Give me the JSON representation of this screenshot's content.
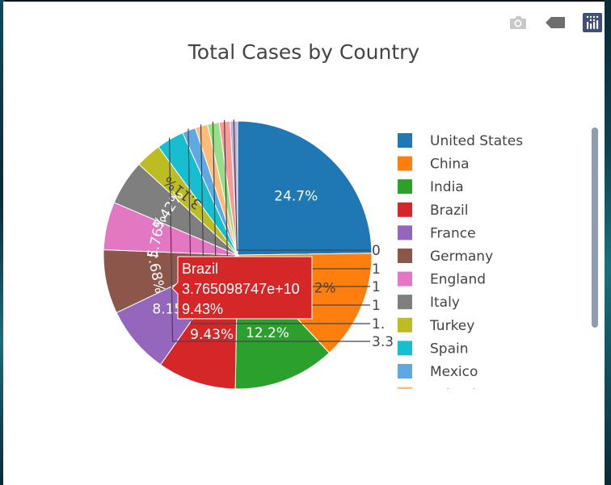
{
  "chart_data": {
    "type": "pie",
    "title": "Total Cases by Country",
    "slices": [
      {
        "label": "United States",
        "percent": 24.7,
        "text": "24.7%",
        "color": "#1f77b4"
      },
      {
        "label": "China",
        "percent": 13.2,
        "text": "13.2%",
        "color": "#ff7f0e"
      },
      {
        "label": "India",
        "percent": 12.2,
        "text": "12.2%",
        "color": "#2ca02c"
      },
      {
        "label": "Brazil",
        "percent": 9.43,
        "text": "9.43%",
        "color": "#d62728"
      },
      {
        "label": "France",
        "percent": 8.15,
        "text": "8.15%",
        "color": "#9467bd"
      },
      {
        "label": "Germany",
        "percent": 7.68,
        "text": "7.68%",
        "color": "#8c564b"
      },
      {
        "label": "England",
        "percent": 5.76,
        "text": "5.76%",
        "color": "#e377c2"
      },
      {
        "label": "Italy",
        "percent": 5.42,
        "text": "5.42%",
        "color": "#7f7f7f"
      },
      {
        "label": "Turkey",
        "percent": 3.11,
        "text": "3.11%",
        "color": "#bcbd22"
      },
      {
        "label": "Spain",
        "percent": 3.3,
        "text": "3.3",
        "color": "#17becf"
      },
      {
        "label": "Mexico",
        "percent": 1.6,
        "text": "1.",
        "color": "#5fa8e0"
      },
      {
        "label": "Poland",
        "percent": 1.5,
        "text": "1",
        "color": "#ffbb78"
      },
      {
        "label": "",
        "percent": 1.4,
        "text": "1",
        "color": "#98df8a"
      },
      {
        "label": "",
        "percent": 1.3,
        "text": "1",
        "color": "#ff9896"
      },
      {
        "label": "",
        "percent": 0.9,
        "text": "0",
        "color": "#c5b0d5"
      }
    ],
    "legend_visible": [
      "United States",
      "China",
      "India",
      "Brazil",
      "France",
      "Germany",
      "England",
      "Italy",
      "Turkey",
      "Spain",
      "Mexico",
      "Poland"
    ],
    "legend_placement": "right",
    "hover": {
      "label": "Brazil",
      "value": "3.765098747e+10",
      "percent": "9.43%"
    }
  },
  "modebar": {
    "icons": [
      "camera-icon",
      "tag-icon",
      "plotly-logo-icon"
    ]
  }
}
